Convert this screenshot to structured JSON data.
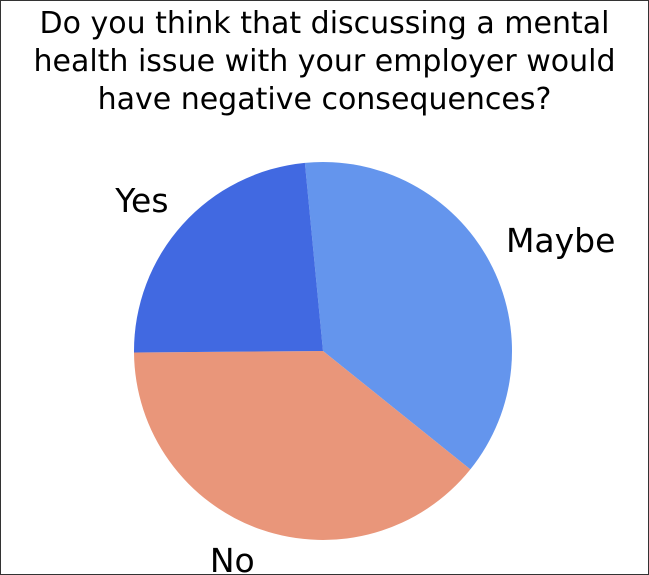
{
  "chart_data": {
    "type": "pie",
    "title": [
      "Do you think that discussing a mental",
      "health issue with your employer would",
      "have negative consequences?"
    ],
    "slices": [
      {
        "label": "Maybe",
        "value": 37.3,
        "color": "#6495ed"
      },
      {
        "label": "No",
        "value": 39.1,
        "color": "#e9967a"
      },
      {
        "label": "Yes",
        "value": 23.6,
        "color": "#4169e1"
      }
    ],
    "start_angle_deg": 95.5,
    "direction": "clockwise",
    "legend": "none"
  }
}
